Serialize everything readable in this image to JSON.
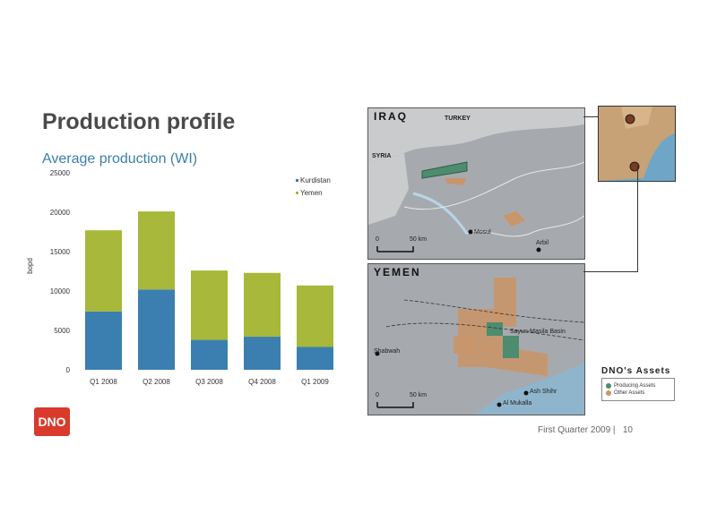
{
  "slide": {
    "title": "Production profile",
    "subtitle": "Average production (WI)",
    "logo_text": "DNO",
    "footer": "First Quarter 2009 |   10"
  },
  "chart_data": {
    "type": "bar",
    "stacked": true,
    "categories": [
      "Q1 2008",
      "Q2 2008",
      "Q3 2008",
      "Q4 2008",
      "Q1 2009"
    ],
    "series": [
      {
        "name": "Kurdistan",
        "color": "#3b7fb0",
        "values": [
          7400,
          10200,
          3800,
          4200,
          2900
        ]
      },
      {
        "name": "Yemen",
        "color": "#a7b83a",
        "values": [
          10300,
          9900,
          8800,
          8100,
          7800
        ]
      }
    ],
    "ylabel": "bopd",
    "ylim": [
      0,
      25000
    ],
    "yticks": [
      0,
      5000,
      10000,
      15000,
      20000,
      25000
    ],
    "legend_position": "top-right",
    "grid": false
  },
  "maps": {
    "iraq": {
      "title": "IRAQ",
      "labels": {
        "turkey": "TURKEY",
        "syria": "SYRIA",
        "mosul": "Mosul",
        "arbil": "Arbil",
        "scale": "50 km",
        "scale_zero": "0"
      }
    },
    "yemen": {
      "title": "YEMEN",
      "labels": {
        "basin": "Sayun-Masila Basin",
        "shabwah": "Shabwah",
        "ash_shihr": "Ash Shihr",
        "al_mukalla": "Al Mukalla",
        "scale": "50 km",
        "scale_zero": "0"
      }
    },
    "legend": {
      "title": "DNO's Assets",
      "producing": "Producing Assets",
      "other": "Other Assets",
      "producing_color": "#4d8c6e",
      "other_color": "#c9956a"
    }
  }
}
